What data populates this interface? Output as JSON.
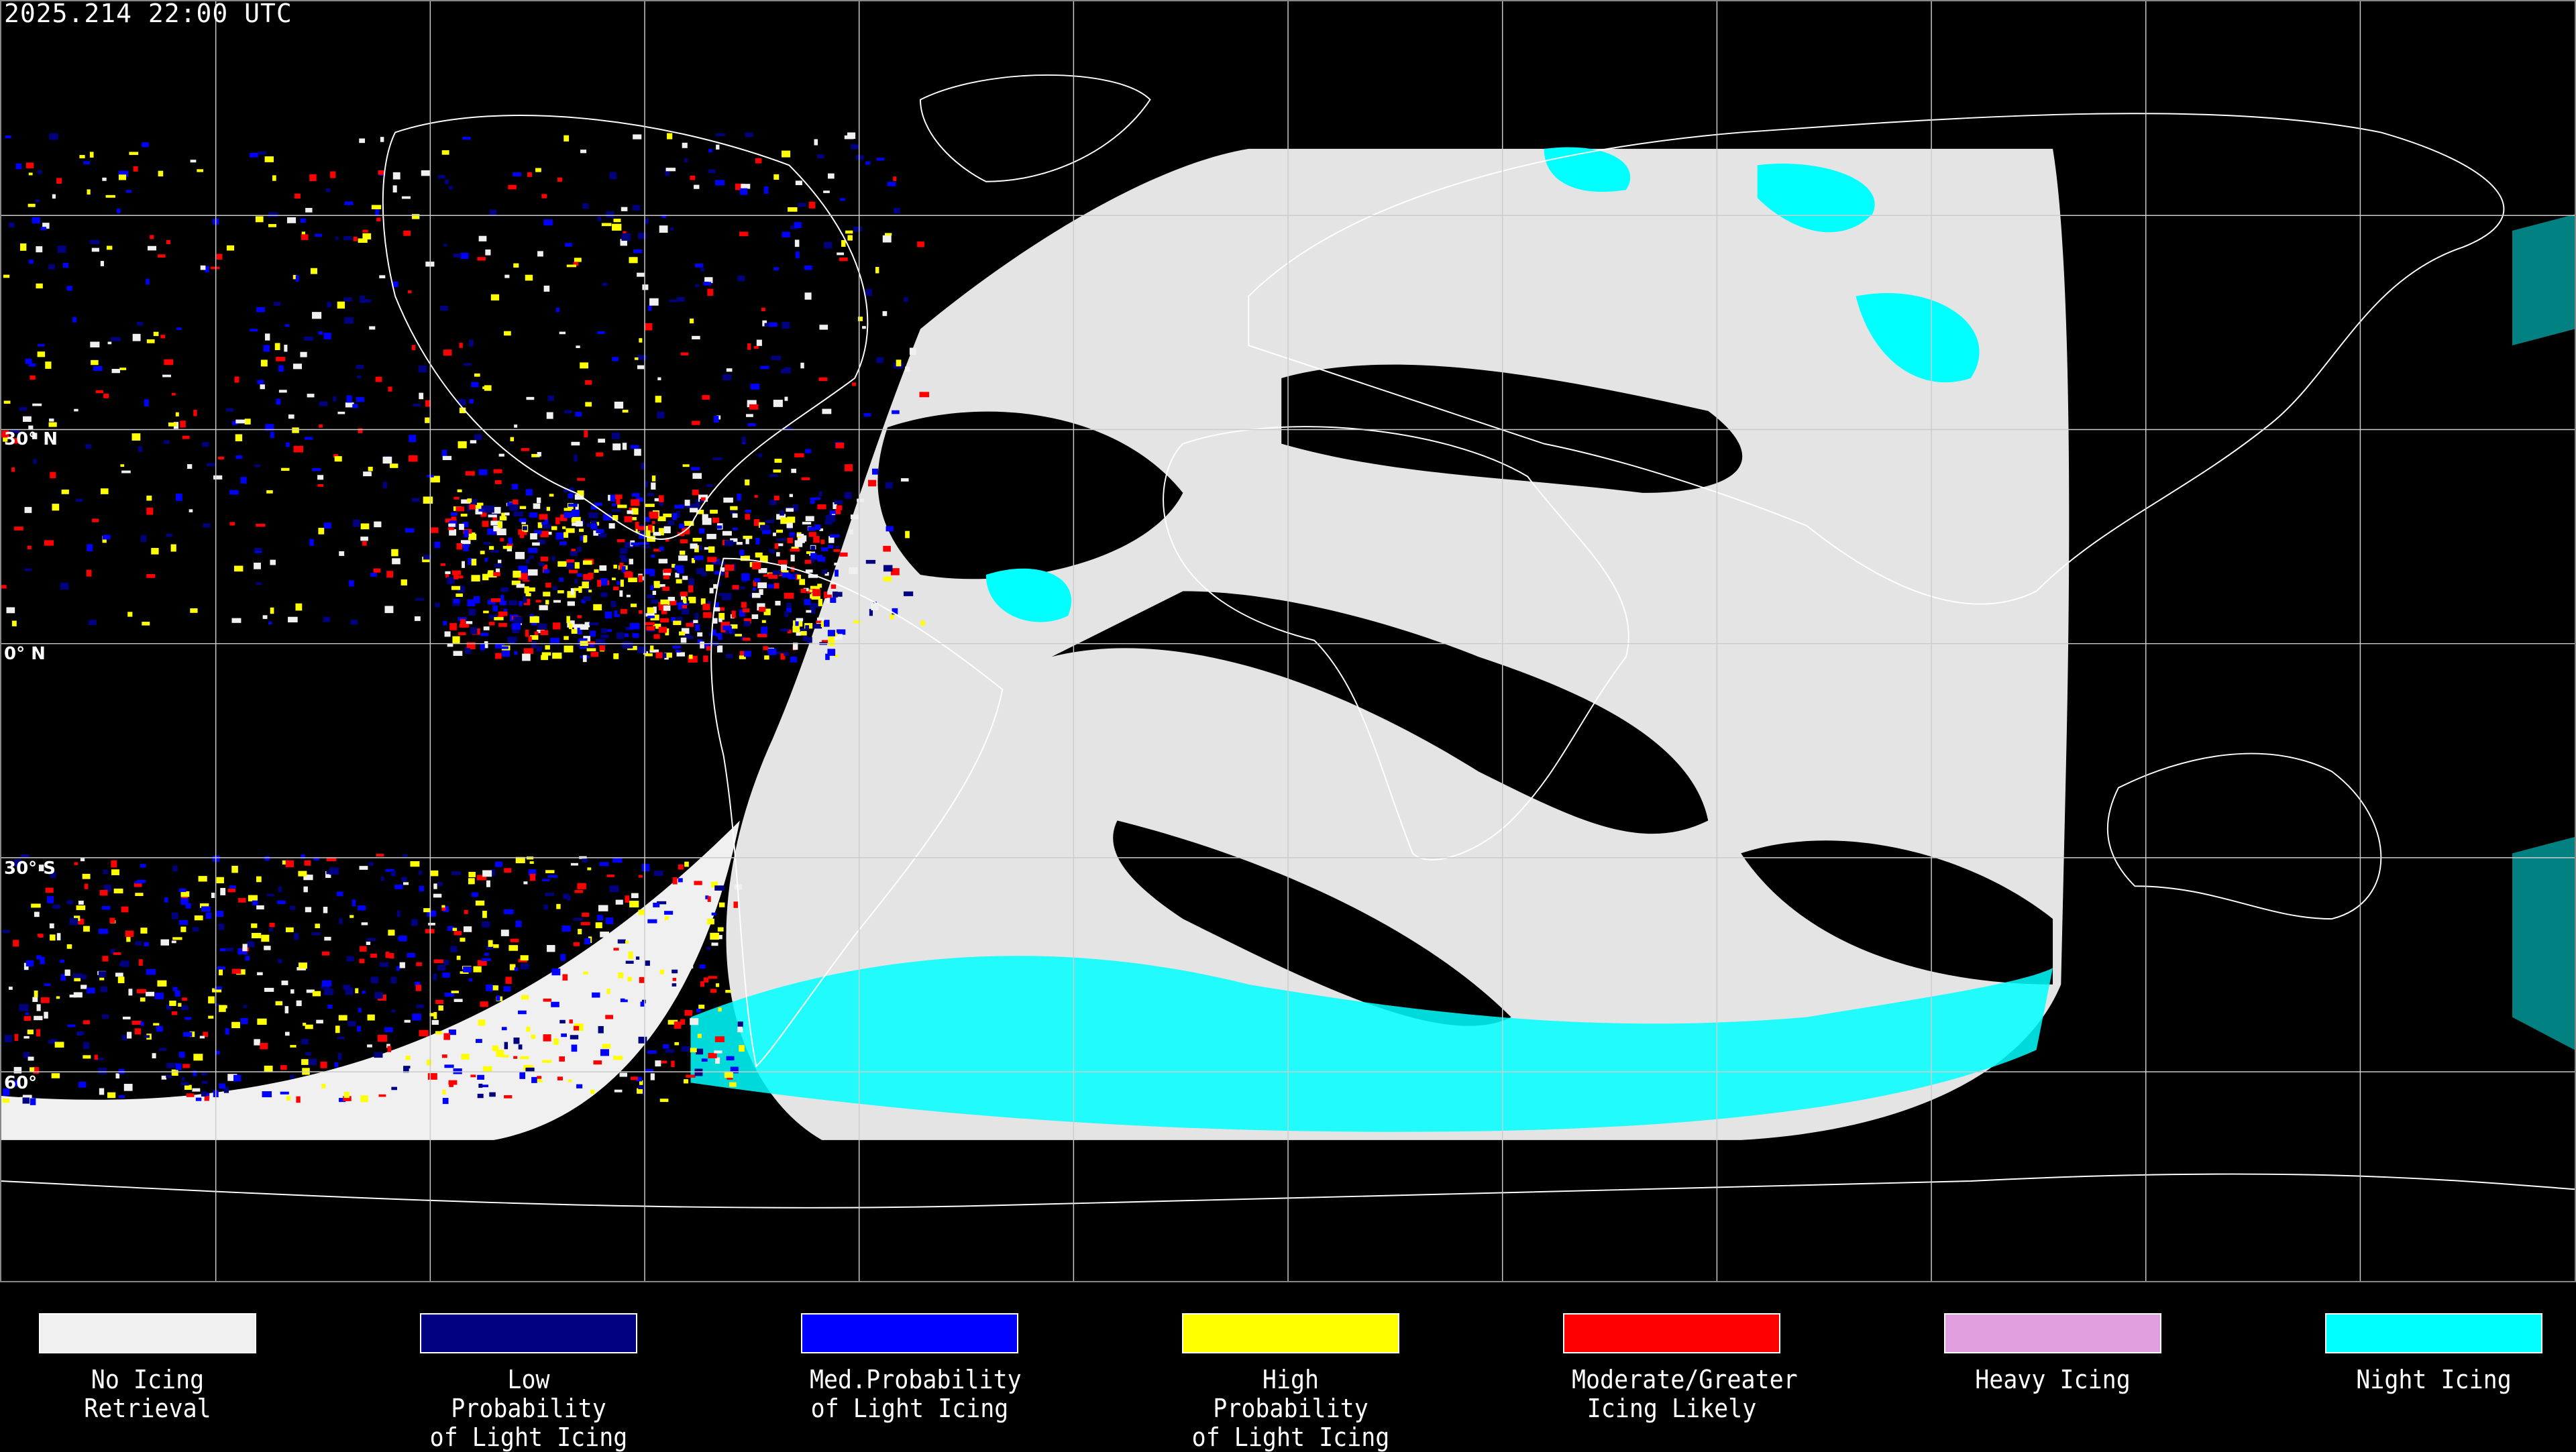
{
  "header": {
    "timestamp": "2025.214 22:00 UTC"
  },
  "map": {
    "latitude_labels": [
      "30° N",
      "0° N",
      "30° S",
      "60°"
    ],
    "background": "#000000",
    "coastline_color": "#ffffff"
  },
  "legend": [
    {
      "label": "No Icing\nRetrieval",
      "color": "#f0f0f0"
    },
    {
      "label": "Low Probability\nof Light Icing",
      "color": "#000080"
    },
    {
      "label": "Med.Probability\nof Light Icing",
      "color": "#0000ff"
    },
    {
      "label": "High Probability\nof Light Icing",
      "color": "#ffff00"
    },
    {
      "label": "Moderate/Greater\nIcing Likely",
      "color": "#ff0000"
    },
    {
      "label": "Heavy Icing",
      "color": "#e0a0e0"
    },
    {
      "label": "Night Icing",
      "color": "#00ffff"
    }
  ]
}
